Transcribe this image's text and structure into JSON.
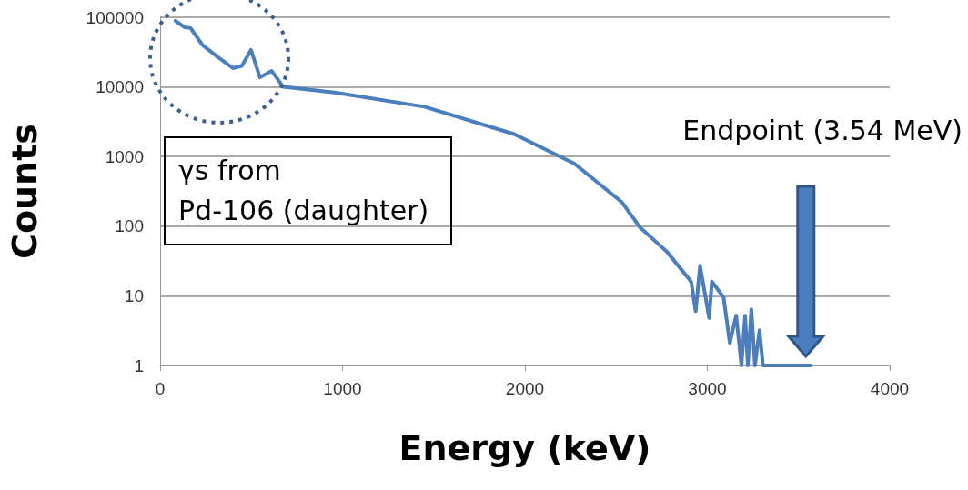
{
  "chart_data": {
    "type": "line",
    "xlabel": "Energy (keV)",
    "ylabel": "Counts",
    "x": [
      84,
      133,
      167,
      232,
      315,
      399,
      448,
      498,
      547,
      611,
      675,
      956,
      1448,
      1941,
      2271,
      2532,
      2631,
      2778,
      2911,
      2936,
      2960,
      3010,
      3025,
      3089,
      3123,
      3158,
      3187,
      3207,
      3222,
      3241,
      3261,
      3286,
      3305,
      3567
    ],
    "series": [
      {
        "color": "#4a7ebf",
        "values": [
          89000,
          72000,
          70000,
          40000,
          27000,
          18600,
          20000,
          34000,
          13700,
          17000,
          10000,
          8300,
          5200,
          2100,
          790,
          220,
          96,
          43,
          16,
          6,
          27,
          4.8,
          16,
          9.5,
          2.1,
          5.2,
          1,
          5.2,
          1,
          6.4,
          1,
          3.2,
          1,
          1
        ]
      }
    ],
    "xlim": [
      0,
      4000
    ],
    "xticks": [
      0,
      1000,
      2000,
      3000,
      4000
    ],
    "ylim": [
      1,
      100000
    ],
    "yticks": [
      1,
      10,
      100,
      1000,
      10000,
      100000
    ],
    "log": "y",
    "grid": "y",
    "marker": "none",
    "line_style": "solid",
    "annotations": [
      "γs from\nPd-106 (daughter)",
      "Endpoint (3.54 MeV)"
    ]
  }
}
